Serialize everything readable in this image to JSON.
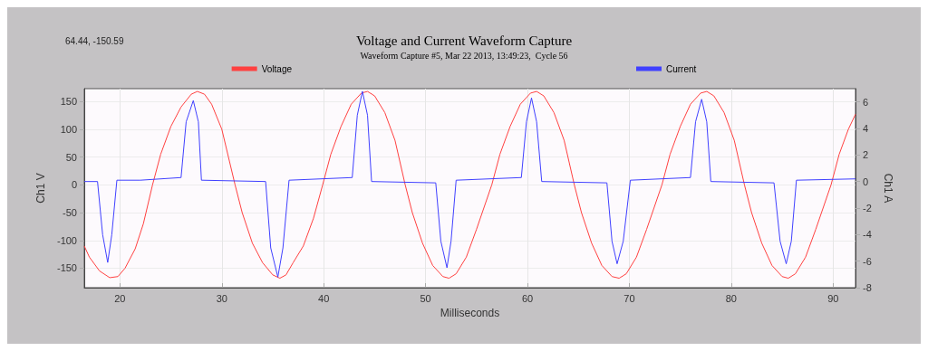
{
  "chart_data": {
    "type": "line",
    "title": "Voltage and Current Waveform Capture",
    "subtitle": "Waveform Capture #5, Mar 22 2013, 13:49:23,  Cycle 56",
    "xlabel": "Milliseconds",
    "ylabel": "Ch1 V",
    "y2label": "Ch1 A",
    "annotations": [
      "64.44, -150.59"
    ],
    "xlim": [
      16.5,
      92.2
    ],
    "xticks": [
      20,
      30,
      40,
      50,
      60,
      70,
      80,
      90
    ],
    "ylim": [
      -185,
      173
    ],
    "yticks": [
      -150,
      -100,
      -50,
      0,
      50,
      100,
      150
    ],
    "y2lim": [
      -8,
      7
    ],
    "y2ticks": [
      -8,
      -6,
      -4,
      -2,
      0,
      2,
      4,
      6
    ],
    "grid": true,
    "legend": "top",
    "marker": "none",
    "line_style": "solid",
    "series": [
      {
        "name": "Voltage",
        "color": "#ff4040",
        "x": [
          16.5,
          17,
          18,
          19,
          19.8,
          20.5,
          21.5,
          22.3,
          23.2,
          24,
          25,
          26,
          27,
          27.6,
          28.3,
          29,
          30,
          31.3,
          32,
          33,
          34,
          35,
          35.7,
          36.3,
          37,
          38,
          39,
          39.9,
          40.7,
          41.7,
          42.7,
          43.7,
          44.3,
          45,
          46,
          47,
          48,
          48.7,
          49.7,
          50.7,
          51.7,
          52.3,
          53,
          54,
          55,
          56.5,
          57.3,
          58.3,
          59.3,
          60.3,
          60.9,
          61.6,
          62.6,
          63.6,
          64.6,
          65.3,
          66.3,
          67.3,
          68.3,
          69,
          69.7,
          70.7,
          71.7,
          73.2,
          74,
          75,
          76,
          77,
          77.6,
          78.3,
          79.3,
          80.3,
          81.3,
          82,
          83,
          84,
          85,
          85.6,
          86.3,
          87.3,
          88.3,
          89.8,
          90.6,
          91.5,
          92.2
        ],
        "values": [
          -110,
          -130,
          -155,
          -167,
          -165,
          -150,
          -115,
          -70,
          0,
          55,
          105,
          140,
          163,
          168,
          163,
          145,
          100,
          0,
          -50,
          -105,
          -140,
          -162,
          -168,
          -162,
          -140,
          -110,
          -60,
          0,
          55,
          105,
          145,
          165,
          168,
          160,
          130,
          80,
          0,
          -50,
          -105,
          -145,
          -165,
          -168,
          -160,
          -130,
          -80,
          0,
          55,
          105,
          145,
          165,
          168,
          160,
          130,
          80,
          0,
          -50,
          -105,
          -145,
          -165,
          -168,
          -160,
          -130,
          -80,
          0,
          55,
          105,
          145,
          165,
          168,
          160,
          130,
          80,
          0,
          -50,
          -105,
          -145,
          -165,
          -168,
          -160,
          -130,
          -80,
          0,
          55,
          100,
          127
        ]
      },
      {
        "name": "Current",
        "color": "#4040ff",
        "axis": "y2",
        "x": [
          16.5,
          17.8,
          18.3,
          18.8,
          19.2,
          19.7,
          22,
          26,
          26.5,
          27.2,
          27.7,
          28,
          34.3,
          34.8,
          35.5,
          36,
          36.6,
          42.8,
          43.3,
          43.8,
          44.3,
          44.7,
          51,
          51.5,
          52.1,
          52.5,
          53,
          59.4,
          59.9,
          60.4,
          60.9,
          61.4,
          67.8,
          68.3,
          68.8,
          69.4,
          70.1,
          76,
          76.5,
          77.1,
          77.6,
          78,
          84.2,
          84.8,
          85.4,
          85.9,
          86.4,
          92.2
        ],
        "values": [
          0,
          0,
          -4,
          -6.1,
          -4,
          0.1,
          0.1,
          0.3,
          4.5,
          6.1,
          4.5,
          0.1,
          0,
          -5,
          -7.2,
          -5,
          0.1,
          0.3,
          5,
          6.8,
          5,
          0,
          -0.1,
          -4.5,
          -6.5,
          -4.5,
          0.1,
          0.3,
          4.5,
          6.3,
          4.5,
          0,
          -0.1,
          -4.5,
          -6.2,
          -4.5,
          0.1,
          0.3,
          4.5,
          6.2,
          4.5,
          0,
          -0.1,
          -4.5,
          -6.2,
          -4.5,
          0.1,
          0.2
        ]
      }
    ]
  }
}
